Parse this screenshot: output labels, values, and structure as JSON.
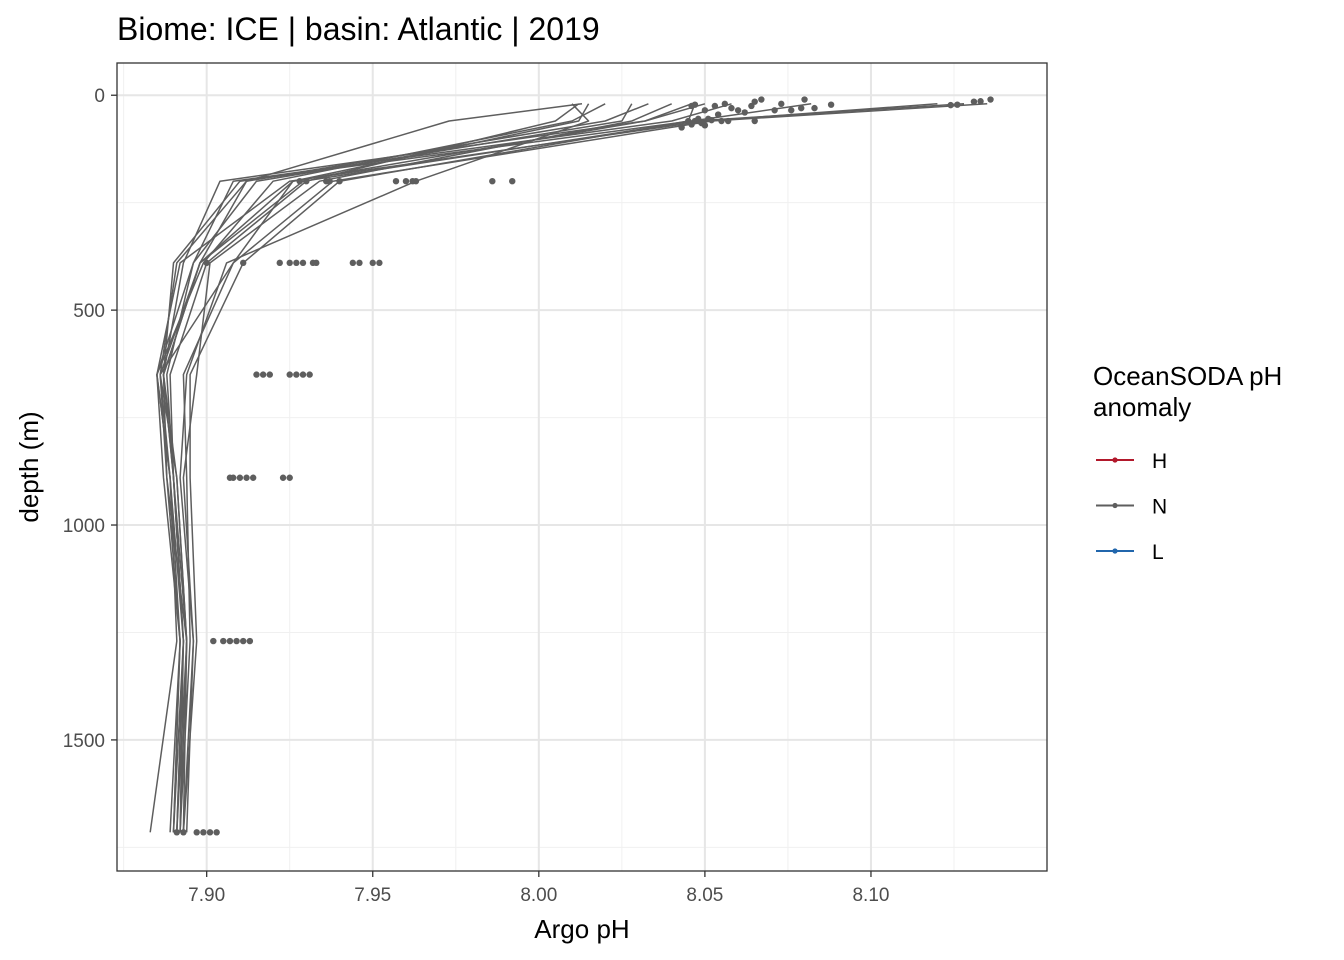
{
  "chart_data": {
    "type": "line",
    "title": "Biome: ICE | basin: Atlantic  |  2019",
    "xlabel": "Argo pH",
    "ylabel": "depth (m)",
    "xlim": [
      7.873,
      8.153
    ],
    "ylim": [
      1805,
      -75
    ],
    "y_reversed": true,
    "xticks": [
      7.9,
      7.95,
      8.0,
      8.05,
      8.1
    ],
    "xtick_labels": [
      "7.90",
      "7.95",
      "8.00",
      "8.05",
      "8.10"
    ],
    "yticks": [
      0,
      500,
      1000,
      1500
    ],
    "ytick_labels": [
      "0",
      "500",
      "1000",
      "1500"
    ],
    "grid": true,
    "legend": {
      "title": "OceanSODA pH anomaly",
      "position": "right",
      "entries": [
        {
          "label": "H",
          "color": "#b2182b"
        },
        {
          "label": "N",
          "color": "#5e5e5e"
        },
        {
          "label": "L",
          "color": "#2166ac"
        }
      ]
    },
    "line_color": "#5e5e5e",
    "depth_levels": [
      20,
      60,
      200,
      390,
      650,
      890,
      1270,
      1715
    ],
    "profiles": [
      {
        "ph": [
          8.135,
          8.052,
          7.938,
          7.908,
          7.886,
          7.889,
          7.891,
          7.883
        ]
      },
      {
        "ph": [
          8.128,
          8.047,
          7.929,
          7.898,
          7.887,
          7.89,
          7.894,
          7.891
        ]
      },
      {
        "ph": [
          8.12,
          8.05,
          7.925,
          7.892,
          7.885,
          7.889,
          7.893,
          7.89
        ]
      },
      {
        "ph": [
          8.082,
          8.046,
          7.91,
          7.89,
          7.887,
          7.888,
          7.892,
          7.889
        ]
      },
      {
        "ph": [
          8.058,
          8.04,
          7.908,
          7.896,
          7.885,
          7.887,
          7.892,
          7.89
        ]
      },
      {
        "ph": [
          8.046,
          8.032,
          7.904,
          7.893,
          7.887,
          7.89,
          7.893,
          7.891
        ]
      },
      {
        "ph": [
          8.033,
          8.02,
          7.912,
          7.891,
          7.886,
          7.888,
          7.894,
          7.892
        ]
      },
      {
        "ph": [
          8.028,
          8.025,
          7.915,
          7.896,
          7.888,
          7.89,
          7.893,
          7.891
        ]
      },
      {
        "ph": [
          8.02,
          8.01,
          7.92,
          7.899,
          7.885,
          7.889,
          7.892,
          7.89
        ]
      },
      {
        "ph": [
          8.015,
          8.012,
          7.926,
          7.898,
          7.886,
          7.891,
          7.894,
          7.893
        ]
      },
      {
        "ph": [
          8.012,
          8.005,
          7.93,
          7.9,
          7.889,
          7.89,
          7.893,
          7.892
        ]
      },
      {
        "ph": [
          8.013,
          7.973,
          7.912,
          7.898,
          7.887,
          7.891,
          7.894,
          7.892
        ]
      },
      {
        "ph": [
          8.01,
          8.015,
          7.963,
          7.906,
          7.894,
          7.892,
          7.896,
          7.893
        ]
      },
      {
        "ph": [
          8.047,
          8.045,
          7.94,
          7.911,
          7.895,
          7.895,
          7.897,
          7.893
        ]
      },
      {
        "ph": [
          8.05,
          8.032,
          7.926,
          7.908,
          7.893,
          7.894,
          7.895,
          7.892
        ]
      },
      {
        "ph": [
          8.04,
          8.028,
          7.934,
          7.901,
          7.897,
          7.893,
          7.896,
          7.894
        ]
      }
    ],
    "points": [
      [
        8.136,
        10
      ],
      [
        8.133,
        14
      ],
      [
        8.131,
        15
      ],
      [
        8.126,
        22
      ],
      [
        8.124,
        23
      ],
      [
        8.088,
        22
      ],
      [
        8.083,
        30
      ],
      [
        8.079,
        30
      ],
      [
        8.08,
        10
      ],
      [
        8.076,
        35
      ],
      [
        8.073,
        20
      ],
      [
        8.071,
        35
      ],
      [
        8.067,
        10
      ],
      [
        8.065,
        15
      ],
      [
        8.064,
        25
      ],
      [
        8.062,
        40
      ],
      [
        8.06,
        35
      ],
      [
        8.058,
        30
      ],
      [
        8.056,
        20
      ],
      [
        8.054,
        45
      ],
      [
        8.053,
        25
      ],
      [
        8.051,
        55
      ],
      [
        8.05,
        35
      ],
      [
        8.048,
        55
      ],
      [
        8.047,
        22
      ],
      [
        8.046,
        25
      ],
      [
        8.049,
        65
      ],
      [
        8.045,
        60
      ],
      [
        8.043,
        75
      ],
      [
        8.048,
        60
      ],
      [
        8.055,
        60
      ],
      [
        8.052,
        58
      ],
      [
        8.047,
        60
      ],
      [
        8.046,
        68
      ],
      [
        8.05,
        70
      ],
      [
        8.065,
        60
      ],
      [
        8.057,
        60
      ],
      [
        7.992,
        200
      ],
      [
        7.986,
        200
      ],
      [
        7.963,
        200
      ],
      [
        7.962,
        200
      ],
      [
        7.96,
        200
      ],
      [
        7.957,
        200
      ],
      [
        7.94,
        200
      ],
      [
        7.937,
        200
      ],
      [
        7.936,
        200
      ],
      [
        7.93,
        200
      ],
      [
        7.928,
        200
      ],
      [
        7.952,
        390
      ],
      [
        7.95,
        390
      ],
      [
        7.946,
        390
      ],
      [
        7.944,
        390
      ],
      [
        7.933,
        390
      ],
      [
        7.932,
        390
      ],
      [
        7.929,
        390
      ],
      [
        7.927,
        390
      ],
      [
        7.925,
        390
      ],
      [
        7.922,
        390
      ],
      [
        7.911,
        390
      ],
      [
        7.9,
        390
      ],
      [
        7.931,
        650
      ],
      [
        7.929,
        650
      ],
      [
        7.927,
        650
      ],
      [
        7.925,
        650
      ],
      [
        7.919,
        650
      ],
      [
        7.917,
        650
      ],
      [
        7.915,
        650
      ],
      [
        7.925,
        890
      ],
      [
        7.923,
        890
      ],
      [
        7.914,
        890
      ],
      [
        7.912,
        890
      ],
      [
        7.91,
        890
      ],
      [
        7.908,
        890
      ],
      [
        7.907,
        890
      ],
      [
        7.913,
        1270
      ],
      [
        7.911,
        1270
      ],
      [
        7.909,
        1270
      ],
      [
        7.907,
        1270
      ],
      [
        7.905,
        1270
      ],
      [
        7.902,
        1270
      ],
      [
        7.903,
        1715
      ],
      [
        7.901,
        1715
      ],
      [
        7.899,
        1715
      ],
      [
        7.897,
        1715
      ],
      [
        7.893,
        1715
      ],
      [
        7.891,
        1715
      ]
    ]
  }
}
